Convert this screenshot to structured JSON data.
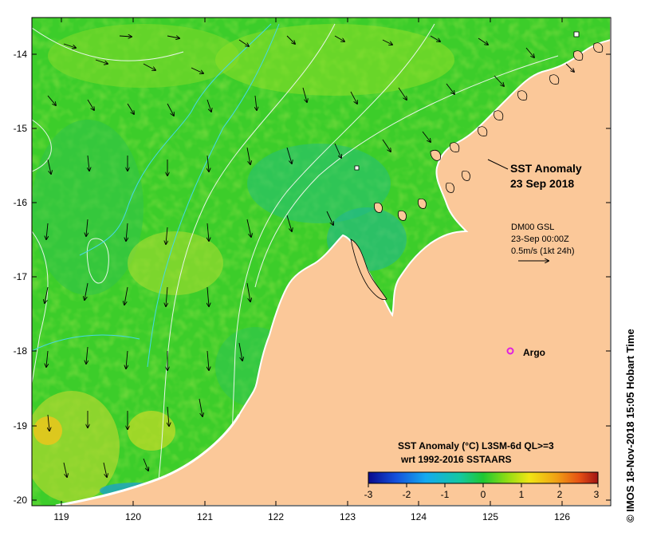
{
  "map": {
    "x_ticks": [
      "119",
      "120",
      "121",
      "122",
      "123",
      "124",
      "125",
      "126"
    ],
    "y_ticks": [
      "-14",
      "-15",
      "-16",
      "-17",
      "-18",
      "-19",
      "-20"
    ]
  },
  "annotation": {
    "title_line1": "SST Anomaly",
    "title_line2": "23 Sep 2018"
  },
  "current_key": {
    "line1": "DM00 GSL",
    "line2": "23-Sep 00:00Z",
    "line3": "0.5m/s (1kt 24h)"
  },
  "argo": {
    "label": "Argo",
    "marker_color": "#e020e0"
  },
  "colorbar": {
    "title_line1": "SST Anomaly (°C) L3SM-6d QL>=3",
    "title_line2": "wrt 1992-2016 SSTAARS",
    "ticks": [
      "-3",
      "-2",
      "-1",
      "0",
      "1",
      "2",
      "3"
    ],
    "colors": [
      "#0a0a8c",
      "#1450dc",
      "#14aaf0",
      "#14c8a0",
      "#1ec832",
      "#8cdc14",
      "#f0e614",
      "#f0a014",
      "#e65014",
      "#a01414"
    ]
  },
  "credit": "© IMOS 18-Nov-2018 15:05 Hobart Time",
  "palette": {
    "land": "#fbc899",
    "ocean_base": "#3ccd2a"
  }
}
